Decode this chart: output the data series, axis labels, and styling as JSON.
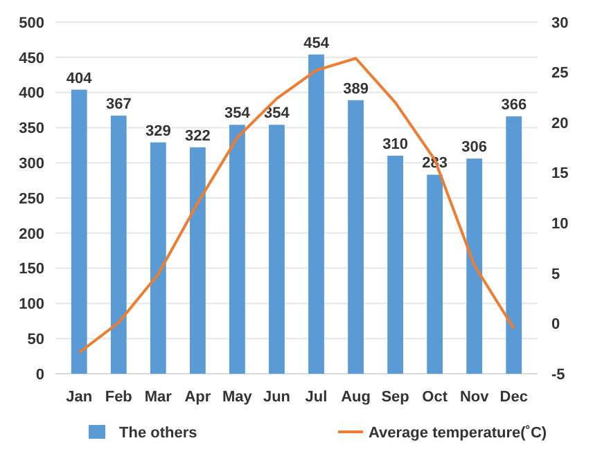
{
  "chart_data": {
    "type": "bar",
    "categories": [
      "Jan",
      "Feb",
      "Mar",
      "Apr",
      "May",
      "Jun",
      "Jul",
      "Aug",
      "Sep",
      "Oct",
      "Nov",
      "Dec"
    ],
    "series": [
      {
        "name": "The others",
        "color": "#5b9bd5",
        "values": [
          404,
          367,
          329,
          322,
          354,
          354,
          454,
          389,
          310,
          283,
          306,
          366
        ],
        "value_labels": [
          "404",
          "367",
          "329",
          "322",
          "354",
          "354",
          "454",
          "389",
          "310",
          "283",
          "306",
          "366"
        ]
      },
      {
        "name": "Average temperature(˚C)",
        "type": "line",
        "axis": "y2",
        "color": "#ed7d31",
        "values": [
          -2.9,
          0.1,
          4.9,
          12,
          18.5,
          22.4,
          25.2,
          26.4,
          22,
          16.3,
          5.8,
          -0.5
        ]
      }
    ],
    "ylim": [
      0,
      500
    ],
    "yticks": [
      0,
      50,
      100,
      150,
      200,
      250,
      300,
      350,
      400,
      450,
      500
    ],
    "y2lim": [
      -5,
      30
    ],
    "y2ticks": [
      -5,
      0,
      5,
      10,
      15,
      20,
      25,
      30
    ],
    "grid": "y",
    "legend": "bottom",
    "marker": "none",
    "line_style": "solid"
  }
}
